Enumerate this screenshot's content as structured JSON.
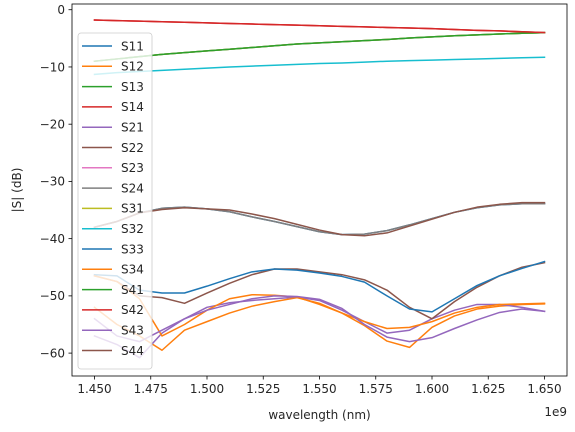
{
  "chart_data": {
    "type": "line",
    "title": "",
    "xlabel": "wavelength (nm)",
    "ylabel": "|S| (dB)",
    "x_offset_label": "1e9",
    "xlim": [
      1.44,
      1.66
    ],
    "ylim": [
      -64,
      1
    ],
    "x_ticks": [
      1.45,
      1.475,
      1.5,
      1.525,
      1.55,
      1.575,
      1.6,
      1.625,
      1.65
    ],
    "x_tick_labels": [
      "1.450",
      "1.475",
      "1.500",
      "1.525",
      "1.550",
      "1.575",
      "1.600",
      "1.625",
      "1.650"
    ],
    "y_ticks": [
      0,
      -10,
      -20,
      -30,
      -40,
      -50,
      -60
    ],
    "y_tick_labels": [
      "0",
      "−10",
      "−20",
      "−30",
      "−40",
      "−50",
      "−60"
    ],
    "legend_position": "upper-left",
    "grid": false,
    "x": [
      1.45,
      1.46,
      1.47,
      1.48,
      1.49,
      1.5,
      1.51,
      1.52,
      1.53,
      1.54,
      1.55,
      1.56,
      1.57,
      1.58,
      1.59,
      1.6,
      1.61,
      1.62,
      1.63,
      1.64,
      1.65
    ],
    "series": [
      {
        "name": "S11",
        "color": "#1f77b4",
        "values": [
          -38.0,
          -37.0,
          -35.5,
          -34.7,
          -34.5,
          -34.8,
          -35.3,
          -36.2,
          -37.0,
          -37.9,
          -38.8,
          -39.3,
          -39.2,
          -38.6,
          -37.6,
          -36.5,
          -35.4,
          -34.6,
          -34.1,
          -33.9,
          -33.9
        ]
      },
      {
        "name": "S12",
        "color": "#ff7f0e",
        "values": [
          -52.0,
          -55.0,
          -57.0,
          -59.5,
          -56.0,
          -54.5,
          -53.0,
          -51.8,
          -51.0,
          -50.3,
          -51.3,
          -53.0,
          -55.2,
          -57.9,
          -59.0,
          -55.5,
          -53.5,
          -52.3,
          -51.8,
          -51.5,
          -51.4
        ]
      },
      {
        "name": "S13",
        "color": "#2ca02c",
        "values": [
          -9.0,
          -8.6,
          -8.2,
          -7.8,
          -7.5,
          -7.2,
          -6.9,
          -6.6,
          -6.3,
          -6.0,
          -5.8,
          -5.6,
          -5.4,
          -5.2,
          -4.95,
          -4.75,
          -4.55,
          -4.4,
          -4.25,
          -4.1,
          -4.0
        ]
      },
      {
        "name": "S14",
        "color": "#d62728",
        "values": [
          -1.8,
          -1.9,
          -2.0,
          -2.1,
          -2.2,
          -2.3,
          -2.4,
          -2.5,
          -2.6,
          -2.7,
          -2.8,
          -2.9,
          -3.0,
          -3.1,
          -3.2,
          -3.3,
          -3.45,
          -3.6,
          -3.7,
          -3.85,
          -4.0
        ]
      },
      {
        "name": "S21",
        "color": "#9467bd",
        "values": [
          -57.0,
          -58.5,
          -60.8,
          -56.5,
          -54.0,
          -52.0,
          -51.2,
          -50.8,
          -50.5,
          -50.2,
          -50.8,
          -52.5,
          -54.5,
          -56.5,
          -56.0,
          -54.0,
          -52.5,
          -51.5,
          -51.5,
          -52.0,
          -52.7
        ]
      },
      {
        "name": "S22",
        "color": "#8c564b",
        "values": [
          -46.5,
          -47.5,
          -50.0,
          -50.3,
          -51.3,
          -49.5,
          -47.8,
          -46.3,
          -45.3,
          -45.3,
          -45.8,
          -46.3,
          -47.2,
          -49.0,
          -52.0,
          -54.0,
          -51.0,
          -48.5,
          -46.5,
          -45.0,
          -44.2
        ]
      },
      {
        "name": "S23",
        "color": "#e377c2",
        "values": [
          -9.0,
          -8.6,
          -8.2,
          -7.8,
          -7.5,
          -7.2,
          -6.9,
          -6.6,
          -6.3,
          -6.0,
          -5.8,
          -5.6,
          -5.4,
          -5.2,
          -4.95,
          -4.75,
          -4.55,
          -4.4,
          -4.25,
          -4.1,
          -4.0
        ]
      },
      {
        "name": "S24",
        "color": "#7f7f7f",
        "values": [
          -38.0,
          -37.0,
          -35.5,
          -34.7,
          -34.5,
          -34.8,
          -35.3,
          -36.2,
          -37.0,
          -37.9,
          -38.8,
          -39.3,
          -39.2,
          -38.6,
          -37.6,
          -36.5,
          -35.4,
          -34.6,
          -34.1,
          -33.9,
          -33.9
        ]
      },
      {
        "name": "S31",
        "color": "#bcbd22",
        "values": [
          -9.0,
          -8.6,
          -8.2,
          -7.8,
          -7.5,
          -7.2,
          -6.9,
          -6.6,
          -6.3,
          -6.0,
          -5.8,
          -5.6,
          -5.4,
          -5.2,
          -4.95,
          -4.75,
          -4.55,
          -4.4,
          -4.25,
          -4.1,
          -4.0
        ]
      },
      {
        "name": "S32",
        "color": "#17becf",
        "values": [
          -11.3,
          -11.0,
          -10.8,
          -10.6,
          -10.4,
          -10.2,
          -10.0,
          -9.85,
          -9.7,
          -9.55,
          -9.4,
          -9.3,
          -9.15,
          -9.0,
          -8.9,
          -8.8,
          -8.7,
          -8.6,
          -8.5,
          -8.4,
          -8.3
        ]
      },
      {
        "name": "S33",
        "color": "#1f77b4",
        "values": [
          -46.3,
          -46.5,
          -49.0,
          -49.5,
          -49.5,
          -48.3,
          -47.0,
          -45.8,
          -45.3,
          -45.5,
          -46.0,
          -46.6,
          -47.6,
          -50.0,
          -52.3,
          -52.8,
          -50.5,
          -48.2,
          -46.5,
          -45.2,
          -44.0
        ]
      },
      {
        "name": "S34",
        "color": "#ff7f0e",
        "values": [
          -46.5,
          -47.5,
          -50.5,
          -57.0,
          -55.0,
          -52.5,
          -50.5,
          -49.8,
          -49.9,
          -50.2,
          -51.5,
          -53.0,
          -54.5,
          -55.7,
          -55.5,
          -54.5,
          -53.0,
          -52.0,
          -51.5,
          -51.4,
          -51.3
        ]
      },
      {
        "name": "S41",
        "color": "#2ca02c",
        "values": [
          -9.0,
          -8.6,
          -8.2,
          -7.8,
          -7.5,
          -7.2,
          -6.9,
          -6.6,
          -6.3,
          -6.0,
          -5.8,
          -5.6,
          -5.4,
          -5.2,
          -4.95,
          -4.75,
          -4.55,
          -4.4,
          -4.25,
          -4.1,
          -4.0
        ]
      },
      {
        "name": "S42",
        "color": "#d62728",
        "values": [
          -1.8,
          -1.9,
          -2.0,
          -2.1,
          -2.2,
          -2.3,
          -2.4,
          -2.5,
          -2.6,
          -2.7,
          -2.8,
          -2.9,
          -3.0,
          -3.1,
          -3.2,
          -3.3,
          -3.45,
          -3.6,
          -3.7,
          -3.85,
          -4.0
        ]
      },
      {
        "name": "S43",
        "color": "#9467bd",
        "values": [
          -54.0,
          -57.0,
          -58.0,
          -56.0,
          -54.0,
          -52.5,
          -51.5,
          -50.5,
          -50.0,
          -50.1,
          -50.6,
          -52.2,
          -55.0,
          -57.2,
          -58.0,
          -57.3,
          -55.7,
          -54.2,
          -52.9,
          -52.3,
          -52.7
        ]
      },
      {
        "name": "S44",
        "color": "#8c564b",
        "values": [
          -38.0,
          -37.0,
          -35.5,
          -34.9,
          -34.6,
          -34.8,
          -35.0,
          -35.7,
          -36.5,
          -37.5,
          -38.5,
          -39.3,
          -39.5,
          -39.0,
          -37.8,
          -36.6,
          -35.4,
          -34.5,
          -34.0,
          -33.7,
          -33.7
        ]
      }
    ]
  }
}
